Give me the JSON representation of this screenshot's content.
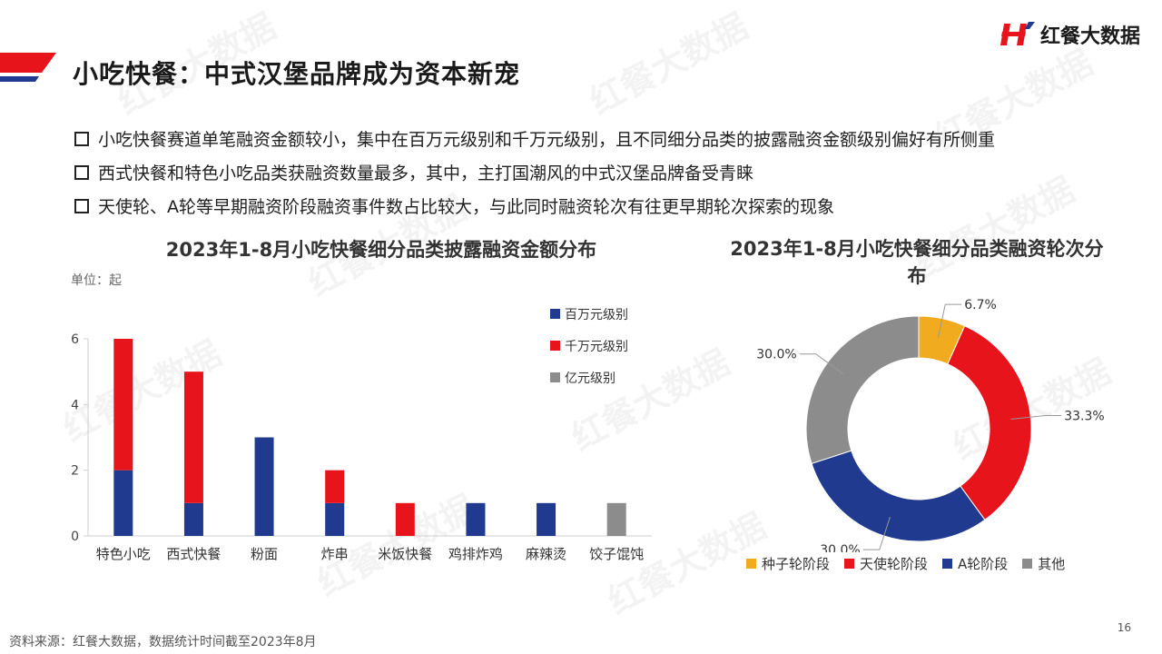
{
  "header": {
    "title": "小吃快餐：中式汉堡品牌成为资本新宠",
    "brand_name": "红餐大数据",
    "colors": {
      "red": "#E8141C",
      "navy": "#1F3A8F",
      "gray": "#8C8C8C",
      "gold": "#F0AC1E"
    }
  },
  "bullets": [
    "小吃快餐赛道单笔融资金额较小，集中在百万元级别和千万元级别，且不同细分品类的披露融资金额级别偏好有所侧重",
    "西式快餐和特色小吃品类获融资数量最多，其中，主打国潮风的中式汉堡品牌备受青睐",
    "天使轮、A轮等早期融资阶段融资事件数占比较大，与此同时融资轮次有往更早期轮次探索的现象"
  ],
  "watermark_text": "红餐大数据",
  "chart_data": [
    {
      "type": "bar",
      "stacked": true,
      "title": "2023年1-8月小吃快餐细分品类披露融资金额分布",
      "unit_label": "单位：起",
      "categories": [
        "特色小吃",
        "西式快餐",
        "粉面",
        "炸串",
        "米饭快餐",
        "鸡排炸鸡",
        "麻辣烫",
        "饺子馄饨"
      ],
      "series": [
        {
          "name": "百万元级别",
          "color": "#1F3A8F",
          "values": [
            2,
            1,
            3,
            1,
            0,
            1,
            1,
            0
          ]
        },
        {
          "name": "千万元级别",
          "color": "#E8141C",
          "values": [
            4,
            4,
            0,
            1,
            1,
            0,
            0,
            0
          ]
        },
        {
          "name": "亿元级别",
          "color": "#8C8C8C",
          "values": [
            0,
            0,
            0,
            0,
            0,
            0,
            0,
            1
          ]
        }
      ],
      "ylim": [
        0,
        6
      ],
      "yticks": [
        "0",
        "2",
        "4",
        "6"
      ],
      "grid": false,
      "legend_position": "top-right"
    },
    {
      "type": "pie",
      "donut": true,
      "title": "2023年1-8月小吃快餐细分品类融资轮次分布",
      "slices": [
        {
          "name": "种子轮阶段",
          "value": 6.7,
          "label": "6.7%",
          "color": "#F0AC1E"
        },
        {
          "name": "天使轮阶段",
          "value": 33.3,
          "label": "33.3%",
          "color": "#E8141C"
        },
        {
          "name": "A轮阶段",
          "value": 30.0,
          "label": "30.0%",
          "color": "#1F3A8F"
        },
        {
          "name": "其他",
          "value": 30.0,
          "label": "30.0%",
          "color": "#8C8C8C"
        }
      ],
      "legend_position": "bottom"
    }
  ],
  "footer": {
    "source": "资料来源：红餐大数据，数据统计时间截至2023年8月",
    "page_number": "16"
  }
}
